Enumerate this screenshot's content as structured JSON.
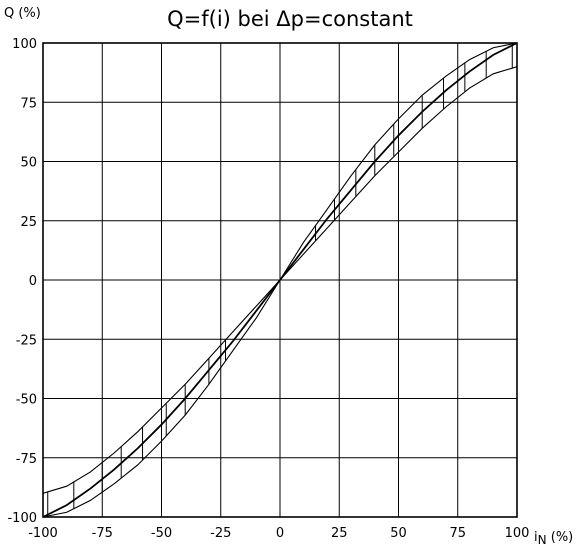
{
  "chart_data": {
    "type": "line",
    "title": "Q=f(i) bei Δp=constant",
    "ylabel": "Q (%)",
    "xlabel_main": "i",
    "xlabel_sub": "N",
    "xlabel_unit": " (%)",
    "xlim": [
      -100,
      100
    ],
    "ylim": [
      -100,
      100
    ],
    "x_ticks": [
      -100,
      -75,
      -50,
      -25,
      0,
      25,
      50,
      75,
      100
    ],
    "y_ticks": [
      -100,
      -75,
      -50,
      -25,
      0,
      25,
      50,
      75,
      100
    ],
    "x_tick_labels": [
      "-100",
      "-75",
      "-50",
      "-25",
      "0",
      "25",
      "50",
      "75",
      "100"
    ],
    "y_tick_labels": [
      "-100",
      "-75",
      "-50",
      "-25",
      "0",
      "25",
      "50",
      "75",
      "100"
    ],
    "grid": true,
    "series": [
      {
        "role": "upper band",
        "x": [
          0,
          10,
          20,
          30,
          40,
          50,
          60,
          70,
          80,
          90,
          100
        ],
        "y": [
          0,
          16,
          30,
          44,
          57,
          68,
          78,
          86,
          93,
          98,
          100
        ]
      },
      {
        "role": "nominal",
        "x": [
          0,
          10,
          20,
          30,
          40,
          50,
          60,
          70,
          80,
          90,
          100
        ],
        "y": [
          0,
          13,
          26,
          38,
          50,
          61,
          71,
          80,
          88,
          95,
          100
        ]
      },
      {
        "role": "lower band",
        "x": [
          0,
          10,
          20,
          30,
          40,
          50,
          60,
          70,
          80,
          90,
          100
        ],
        "y": [
          0,
          11,
          22,
          33,
          44,
          54,
          64,
          73,
          81,
          87,
          90
        ]
      }
    ],
    "tolerance_bars_x": [
      -98,
      -87,
      -75,
      -67,
      -58,
      -48,
      -40,
      -30,
      -23,
      15,
      23,
      32,
      40,
      48,
      60,
      69,
      78,
      87,
      98
    ],
    "line_color": "#000000",
    "grid_color": "#000000"
  }
}
